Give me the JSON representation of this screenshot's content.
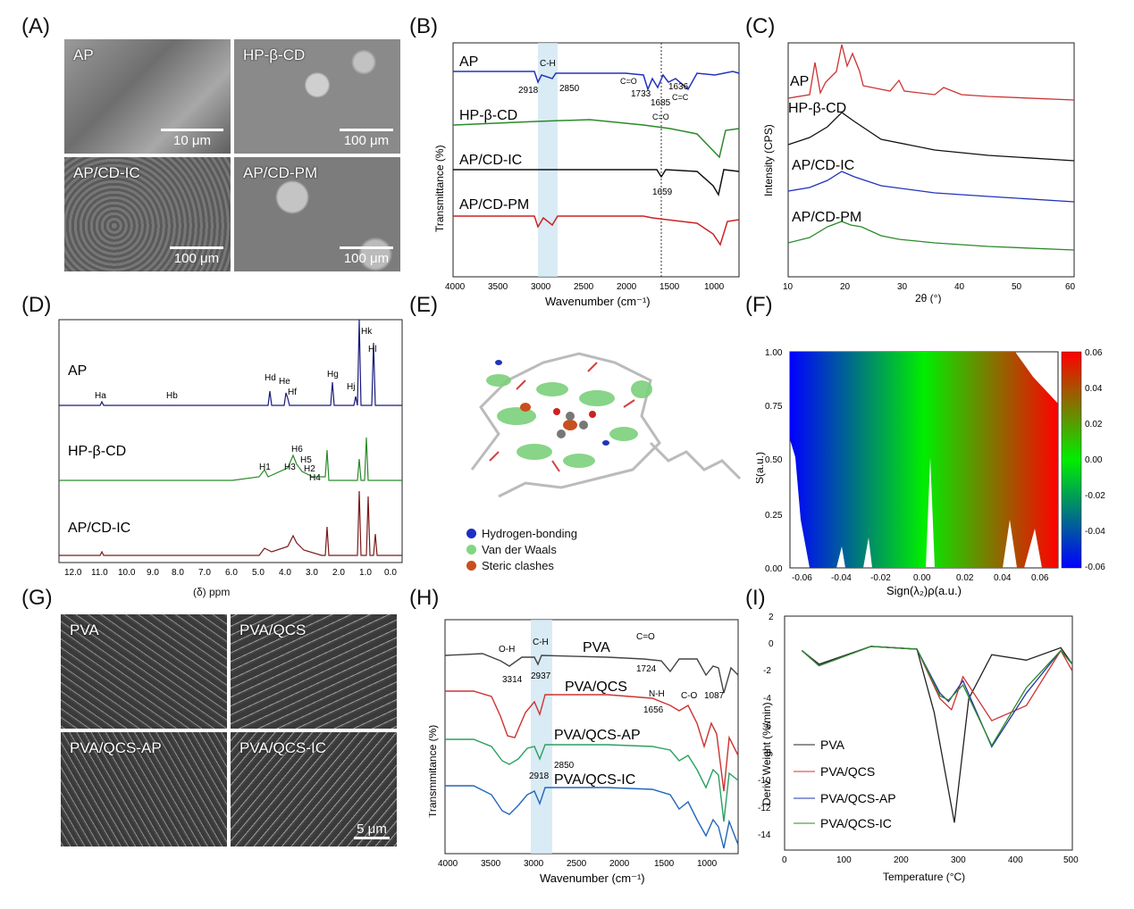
{
  "panels": {
    "A": {
      "letter": "(A)",
      "tiles": [
        {
          "label": "AP",
          "scale": "10 μm"
        },
        {
          "label": "HP-β-CD",
          "scale": "100 μm"
        },
        {
          "label": "AP/CD-IC",
          "scale": "100 μm"
        },
        {
          "label": "AP/CD-PM",
          "scale": "100 μm"
        }
      ]
    },
    "B": {
      "letter": "(B)",
      "ylabel": "Transmittance (%)",
      "xlabel": "Wavenumber (cm⁻¹)",
      "xticks": [
        "4000",
        "3500",
        "3000",
        "2500",
        "2000",
        "1500",
        "1000"
      ],
      "series": [
        {
          "name": "AP",
          "color": "#2233bb"
        },
        {
          "name": "HP-β-CD",
          "color": "#2a8a2a"
        },
        {
          "name": "AP/CD-IC",
          "color": "#111111"
        },
        {
          "name": "AP/CD-PM",
          "color": "#cc2222"
        }
      ],
      "annotations": [
        "C-H",
        "2918",
        "2850",
        "C=O",
        "1733",
        "1685",
        "1636",
        "C=C",
        "C=O",
        "1659"
      ]
    },
    "C": {
      "letter": "(C)",
      "ylabel": "Intensity (CPS)",
      "xlabel": "2θ (°)",
      "xticks": [
        "10",
        "20",
        "30",
        "40",
        "50",
        "60"
      ],
      "series": [
        {
          "name": "AP",
          "color": "#cc3333"
        },
        {
          "name": "HP-β-CD",
          "color": "#111111"
        },
        {
          "name": "AP/CD-IC",
          "color": "#2233bb"
        },
        {
          "name": "AP/CD-PM",
          "color": "#2a8a2a"
        }
      ]
    },
    "D": {
      "letter": "(D)",
      "xlabel": "(δ) ppm",
      "xticks": [
        "12.0",
        "11.0",
        "10.0",
        "9.0",
        "8.0",
        "7.0",
        "6.0",
        "5.0",
        "4.0",
        "3.0",
        "2.0",
        "1.0",
        "0.0"
      ],
      "series": [
        {
          "name": "AP",
          "color": "#1a1a7a"
        },
        {
          "name": "HP-β-CD",
          "color": "#2a8a2a"
        },
        {
          "name": "AP/CD-IC",
          "color": "#7a1a1a"
        }
      ],
      "peaks": [
        "Ha",
        "Hb",
        "Hd",
        "He",
        "Hf",
        "Hg",
        "Hj",
        "Hk",
        "Hl",
        "H6",
        "H5",
        "H3",
        "H2",
        "H4",
        "H1"
      ]
    },
    "E": {
      "letter": "(E)",
      "legend": [
        {
          "label": "Hydrogen-bonding",
          "color": "#1f2fbf"
        },
        {
          "label": "Van der Waals",
          "color": "#7fd87f"
        },
        {
          "label": "Steric clashes",
          "color": "#c8501e"
        }
      ]
    },
    "F": {
      "letter": "(F)",
      "ylabel": "S(a.u.)",
      "xlabel": "Sign(λ₂)ρ(a.u.)",
      "xticks": [
        "-0.06",
        "-0.04",
        "-0.02",
        "0.00",
        "0.02",
        "0.04",
        "0.06"
      ],
      "yticks": [
        "0.00",
        "0.25",
        "0.50",
        "0.75",
        "1.00"
      ],
      "colorbar": [
        "0.06",
        "0.04",
        "0.02",
        "0.00",
        "-0.02",
        "-0.04",
        "-0.06"
      ]
    },
    "G": {
      "letter": "(G)",
      "tiles": [
        {
          "label": "PVA",
          "scale": ""
        },
        {
          "label": "PVA/QCS",
          "scale": ""
        },
        {
          "label": "PVA/QCS-AP",
          "scale": ""
        },
        {
          "label": "PVA/QCS-IC",
          "scale": "5 μm"
        }
      ]
    },
    "H": {
      "letter": "(H)",
      "ylabel": "Transmmitance (%)",
      "xlabel": "Wavenumber (cm⁻¹)",
      "xticks": [
        "4000",
        "3500",
        "3000",
        "2500",
        "2000",
        "1500",
        "1000"
      ],
      "series": [
        {
          "name": "PVA",
          "color": "#444444"
        },
        {
          "name": "PVA/QCS",
          "color": "#cc3333"
        },
        {
          "name": "PVA/QCS-AP",
          "color": "#2aa060"
        },
        {
          "name": "PVA/QCS-IC",
          "color": "#2266bb"
        }
      ],
      "annotations": [
        "O-H",
        "3314",
        "C-H",
        "2937",
        "C=O",
        "1724",
        "N-H",
        "1656",
        "C-O",
        "1087",
        "2850",
        "2918"
      ]
    },
    "I": {
      "letter": "(I)",
      "ylabel": "Deriv. Weight (%/min)",
      "xlabel": "Temperature (°C)",
      "xticks": [
        "0",
        "100",
        "200",
        "300",
        "400",
        "500"
      ],
      "yticks": [
        "2",
        "0",
        "-2",
        "-4",
        "-6",
        "-8",
        "-10",
        "-12",
        "-14"
      ],
      "series": [
        {
          "name": "PVA",
          "color": "#222222"
        },
        {
          "name": "PVA/QCS",
          "color": "#cc3333"
        },
        {
          "name": "PVA/QCS-AP",
          "color": "#2233aa"
        },
        {
          "name": "PVA/QCS-IC",
          "color": "#2a8a2a"
        }
      ]
    }
  },
  "chart_data": [
    {
      "panel": "C",
      "type": "line",
      "x_range": [
        10,
        60
      ],
      "xlabel": "2θ (°)",
      "ylabel": "Intensity (CPS)",
      "series": [
        {
          "name": "AP",
          "x": [
            10,
            15,
            18,
            20,
            21,
            22,
            25,
            28,
            40,
            60
          ],
          "y": [
            1,
            4,
            3,
            6,
            5,
            4.5,
            2,
            2.2,
            1.5,
            1
          ]
        },
        {
          "name": "HP-β-CD",
          "x": [
            10,
            14,
            19,
            25,
            35,
            60
          ],
          "y": [
            1,
            1.5,
            3.5,
            2,
            1.2,
            0.8
          ]
        },
        {
          "name": "AP/CD-IC",
          "x": [
            10,
            14,
            19,
            25,
            35,
            60
          ],
          "y": [
            0.8,
            1.2,
            2.2,
            1.4,
            1,
            0.7
          ]
        },
        {
          "name": "AP/CD-PM",
          "x": [
            10,
            15,
            19,
            22,
            28,
            60
          ],
          "y": [
            0.8,
            1.4,
            2.4,
            2.0,
            1.3,
            0.7
          ]
        }
      ]
    },
    {
      "panel": "I",
      "type": "line",
      "x_range": [
        0,
        500
      ],
      "y_range": [
        -15,
        2
      ],
      "xlabel": "Temperature (°C)",
      "ylabel": "Deriv. Weight (%/min)",
      "series": [
        {
          "name": "PVA",
          "x": [
            30,
            60,
            150,
            230,
            260,
            295,
            320,
            360,
            420,
            480,
            500
          ],
          "y": [
            -0.5,
            -1.5,
            -0.2,
            -0.4,
            -5,
            -13,
            -4,
            -0.8,
            -1.2,
            -0.3,
            -1.5
          ]
        },
        {
          "name": "PVA/QCS",
          "x": [
            30,
            60,
            150,
            230,
            270,
            290,
            310,
            360,
            420,
            480,
            500
          ],
          "y": [
            -0.5,
            -1.6,
            -0.2,
            -0.4,
            -4,
            -4.8,
            -2.4,
            -5.6,
            -4.5,
            -0.5,
            -2
          ]
        },
        {
          "name": "PVA/QCS-AP",
          "x": [
            30,
            60,
            150,
            230,
            270,
            285,
            310,
            360,
            420,
            480,
            500
          ],
          "y": [
            -0.5,
            -1.6,
            -0.2,
            -0.4,
            -3.6,
            -4.2,
            -2.7,
            -7.5,
            -3.6,
            -0.5,
            -1.5
          ]
        },
        {
          "name": "PVA/QCS-IC",
          "x": [
            30,
            60,
            150,
            230,
            270,
            285,
            310,
            360,
            420,
            480,
            500
          ],
          "y": [
            -0.5,
            -1.6,
            -0.2,
            -0.4,
            -3.8,
            -4.1,
            -3.0,
            -7.4,
            -3.2,
            -0.5,
            -1.5
          ]
        }
      ]
    }
  ]
}
